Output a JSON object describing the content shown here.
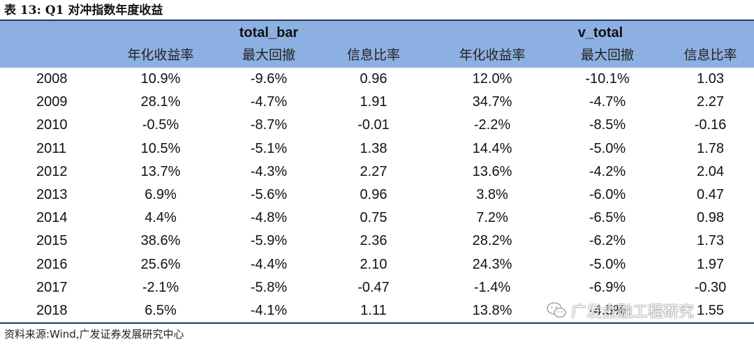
{
  "title": "表 13:  Q1 对冲指数年度收益",
  "groups": [
    "total_bar",
    "v_total"
  ],
  "subheaders": [
    "年化收益率",
    "最大回撤",
    "信息比率",
    "年化收益率",
    "最大回撤",
    "信息比率"
  ],
  "rows": [
    [
      "2008",
      "10.9%",
      "-9.6%",
      "0.96",
      "12.0%",
      "-10.1%",
      "1.03"
    ],
    [
      "2009",
      "28.1%",
      "-4.7%",
      "1.91",
      "34.7%",
      "-4.7%",
      "2.27"
    ],
    [
      "2010",
      "-0.5%",
      "-8.7%",
      "-0.01",
      "-2.2%",
      "-8.5%",
      "-0.16"
    ],
    [
      "2011",
      "10.5%",
      "-5.1%",
      "1.38",
      "14.4%",
      "-5.0%",
      "1.78"
    ],
    [
      "2012",
      "13.7%",
      "-4.3%",
      "2.27",
      "13.6%",
      "-4.2%",
      "2.04"
    ],
    [
      "2013",
      "6.9%",
      "-5.6%",
      "0.96",
      "3.8%",
      "-6.0%",
      "0.47"
    ],
    [
      "2014",
      "4.4%",
      "-4.8%",
      "0.75",
      "7.2%",
      "-6.5%",
      "0.98"
    ],
    [
      "2015",
      "38.6%",
      "-5.9%",
      "2.36",
      "28.2%",
      "-6.2%",
      "1.73"
    ],
    [
      "2016",
      "25.6%",
      "-4.4%",
      "2.10",
      "24.3%",
      "-5.0%",
      "1.97"
    ],
    [
      "2017",
      "-2.1%",
      "-5.8%",
      "-0.47",
      "-1.4%",
      "-6.9%",
      "-0.30"
    ],
    [
      "2018",
      "6.5%",
      "-4.1%",
      "1.11",
      "13.8%",
      "-4.5%",
      "1.55"
    ]
  ],
  "source": "资料来源:Wind,广发证券发展研究中心",
  "watermark": "广发金融工程研究",
  "colors": {
    "header_bg": "#8db0e2",
    "rule": "#1f3864"
  }
}
